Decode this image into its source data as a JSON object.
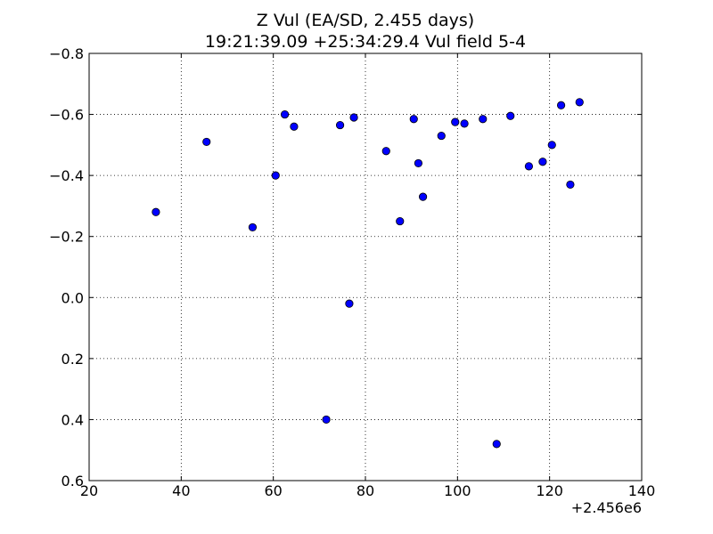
{
  "chart_data": {
    "type": "scatter",
    "title": "Z Vul (EA/SD, 2.455 days)",
    "subtitle": "19:21:39.09 +25:34:29.4 Vul field 5-4",
    "xlabel": "",
    "ylabel": "",
    "x_offset_label": "+2.456e6",
    "xlim": [
      20,
      140
    ],
    "ylim": [
      0.6,
      -0.8
    ],
    "y_inverted": true,
    "grid": true,
    "x_ticks": [
      20,
      40,
      60,
      80,
      100,
      120,
      140
    ],
    "x_tick_labels": [
      "20",
      "40",
      "60",
      "80",
      "100",
      "120",
      "140"
    ],
    "y_ticks": [
      -0.8,
      -0.6,
      -0.4,
      -0.2,
      0.0,
      0.2,
      0.4,
      0.6
    ],
    "y_tick_labels": [
      "−0.8",
      "−0.6",
      "−0.4",
      "−0.2",
      "0.0",
      "0.2",
      "0.4",
      "0.6"
    ],
    "marker_color": "#0000ff",
    "points": [
      {
        "x": 34.5,
        "y": -0.28
      },
      {
        "x": 45.5,
        "y": -0.51
      },
      {
        "x": 55.5,
        "y": -0.23
      },
      {
        "x": 60.5,
        "y": -0.4
      },
      {
        "x": 62.5,
        "y": -0.6
      },
      {
        "x": 64.5,
        "y": -0.56
      },
      {
        "x": 71.5,
        "y": 0.4
      },
      {
        "x": 74.5,
        "y": -0.565
      },
      {
        "x": 76.5,
        "y": 0.02
      },
      {
        "x": 77.5,
        "y": -0.59
      },
      {
        "x": 84.5,
        "y": -0.48
      },
      {
        "x": 87.5,
        "y": -0.25
      },
      {
        "x": 90.5,
        "y": -0.585
      },
      {
        "x": 91.5,
        "y": -0.44
      },
      {
        "x": 92.5,
        "y": -0.33
      },
      {
        "x": 96.5,
        "y": -0.53
      },
      {
        "x": 99.5,
        "y": -0.575
      },
      {
        "x": 101.5,
        "y": -0.57
      },
      {
        "x": 105.5,
        "y": -0.585
      },
      {
        "x": 108.5,
        "y": 0.48
      },
      {
        "x": 111.5,
        "y": -0.595
      },
      {
        "x": 115.5,
        "y": -0.43
      },
      {
        "x": 118.5,
        "y": -0.445
      },
      {
        "x": 120.5,
        "y": -0.5
      },
      {
        "x": 122.5,
        "y": -0.63
      },
      {
        "x": 124.5,
        "y": -0.37
      },
      {
        "x": 126.5,
        "y": -0.64
      }
    ]
  }
}
